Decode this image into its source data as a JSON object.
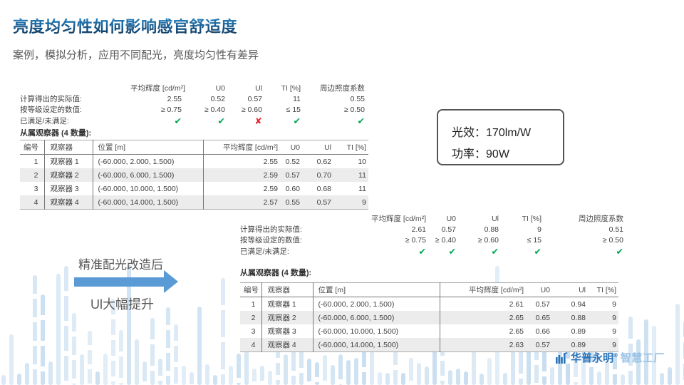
{
  "slide": {
    "title": "亮度均匀性如何影响感官舒适度",
    "subtitle": "案例，模拟分析，应用不同配光，亮度均匀性有差异"
  },
  "labels": {
    "actual": "计算得出的实际值:",
    "required": "按等级设定的数值:",
    "status": "已满足/未满足:",
    "observers": "从属观察器 (4 数量):"
  },
  "before": {
    "summary": {
      "columns": [
        "平均辉度 [cd/m²]",
        "U0",
        "Ul",
        "TI [%]",
        "周边照度系数"
      ],
      "actual": [
        "2.55",
        "0.52",
        "0.57",
        "11",
        "0.55"
      ],
      "required": [
        "≥ 0.75",
        "≥ 0.40",
        "≥ 0.60",
        "≤ 15",
        "≥ 0.50"
      ],
      "status": [
        "pass",
        "pass",
        "fail",
        "pass",
        "pass"
      ]
    },
    "table": {
      "columns": [
        "编号",
        "观察器",
        "位置 [m]",
        "平均辉度 [cd/m²]",
        "U0",
        "Ul",
        "TI [%]"
      ],
      "rows": [
        [
          "1",
          "观察器 1",
          "(-60.000, 2.000, 1.500)",
          "2.55",
          "0.52",
          "0.62",
          "10"
        ],
        [
          "2",
          "观察器 2",
          "(-60.000, 6.000, 1.500)",
          "2.59",
          "0.57",
          "0.70",
          "11"
        ],
        [
          "3",
          "观察器 3",
          "(-60.000, 10.000, 1.500)",
          "2.59",
          "0.60",
          "0.68",
          "11"
        ],
        [
          "4",
          "观察器 4",
          "(-60.000, 14.000, 1.500)",
          "2.57",
          "0.55",
          "0.57",
          "9"
        ]
      ]
    }
  },
  "after": {
    "summary": {
      "columns": [
        "平均辉度 [cd/m²]",
        "U0",
        "Ul",
        "TI [%]",
        "周边照度系数"
      ],
      "actual": [
        "2.61",
        "0.57",
        "0.88",
        "9",
        "0.51"
      ],
      "required": [
        "≥ 0.75",
        "≥ 0.40",
        "≥ 0.60",
        "≤ 15",
        "≥ 0.50"
      ],
      "status": [
        "pass",
        "pass",
        "pass",
        "pass",
        "pass"
      ]
    },
    "table": {
      "columns": [
        "编号",
        "观察器",
        "位置 [m]",
        "平均辉度 [cd/m²]",
        "U0",
        "Ul",
        "TI [%]"
      ],
      "rows": [
        [
          "1",
          "观察器 1",
          "(-60.000, 2.000, 1.500)",
          "2.61",
          "0.57",
          "0.94",
          "9"
        ],
        [
          "2",
          "观察器 2",
          "(-60.000, 6.000, 1.500)",
          "2.65",
          "0.65",
          "0.88",
          "9"
        ],
        [
          "3",
          "观察器 3",
          "(-60.000, 10.000, 1.500)",
          "2.65",
          "0.66",
          "0.89",
          "9"
        ],
        [
          "4",
          "观察器 4",
          "(-60.000, 14.000, 1.500)",
          "2.63",
          "0.57",
          "0.89",
          "9"
        ]
      ]
    }
  },
  "info_box": {
    "lines": [
      {
        "label": "光效：",
        "value": "170lm/W"
      },
      {
        "label": "功率：",
        "value": "90W"
      }
    ]
  },
  "annotation": {
    "top": "精准配光改造后",
    "bottom": "Ul大幅提升"
  },
  "logo": {
    "brand": "华普永明",
    "mark": "®",
    "suffix": "智慧工厂"
  },
  "marks": {
    "pass": "✔",
    "fail": "✘"
  },
  "colors": {
    "accent": "#5B9BD5",
    "deco_bar": "#C5DCEF",
    "pass": "#00A651",
    "fail": "#E8232E",
    "brand": "#2973B8",
    "brand_light": "#9CC3E5"
  }
}
